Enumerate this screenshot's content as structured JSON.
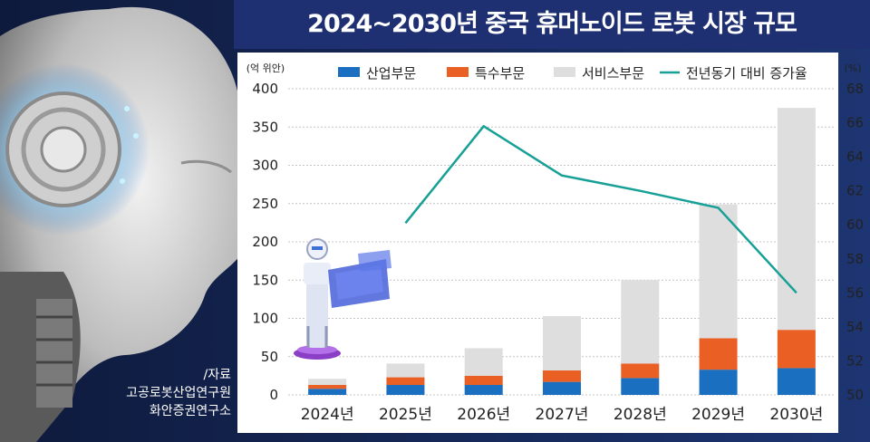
{
  "title": "2024~2030년 중국 휴머노이드 로봇 시장 규모",
  "source_lines": [
    "/자료",
    "고공로봇산업연구원",
    "화안증권연구소"
  ],
  "chart_data": {
    "type": "bar",
    "stacked": true,
    "categories": [
      "2024년",
      "2025년",
      "2026년",
      "2027년",
      "2028년",
      "2029년",
      "2030년"
    ],
    "series": [
      {
        "name": "산업부문",
        "color": "#1a6fc0",
        "values": [
          8,
          13,
          13,
          17,
          22,
          33,
          35
        ]
      },
      {
        "name": "특수부문",
        "color": "#e95f24",
        "values": [
          5,
          10,
          12,
          15,
          19,
          41,
          50
        ]
      },
      {
        "name": "서비스부문",
        "color": "#dedede",
        "values": [
          8,
          18,
          36,
          71,
          109,
          175,
          290
        ]
      }
    ],
    "line_series": {
      "name": "전년동기 대비 증가율",
      "color": "#16a096",
      "values": [
        null,
        60.1,
        65.8,
        62.9,
        62.0,
        61.0,
        56.0
      ]
    },
    "yunit_left": "(억 위안)",
    "yunit_right": "(%)",
    "ylim": [
      0,
      400
    ],
    "yticks": [
      "0",
      "50",
      "100",
      "150",
      "200",
      "250",
      "300",
      "350",
      "400"
    ],
    "y2lim": [
      50,
      68
    ],
    "y2ticks": [
      "50",
      "52",
      "54",
      "56",
      "58",
      "60",
      "62",
      "64",
      "66",
      "68"
    ],
    "grid": true,
    "legend": "top"
  },
  "colors": {
    "background": "#17285a",
    "title_bar": "#1e2f72",
    "plot_bg": "#ffffff",
    "gridline": "#c4c4c4"
  }
}
